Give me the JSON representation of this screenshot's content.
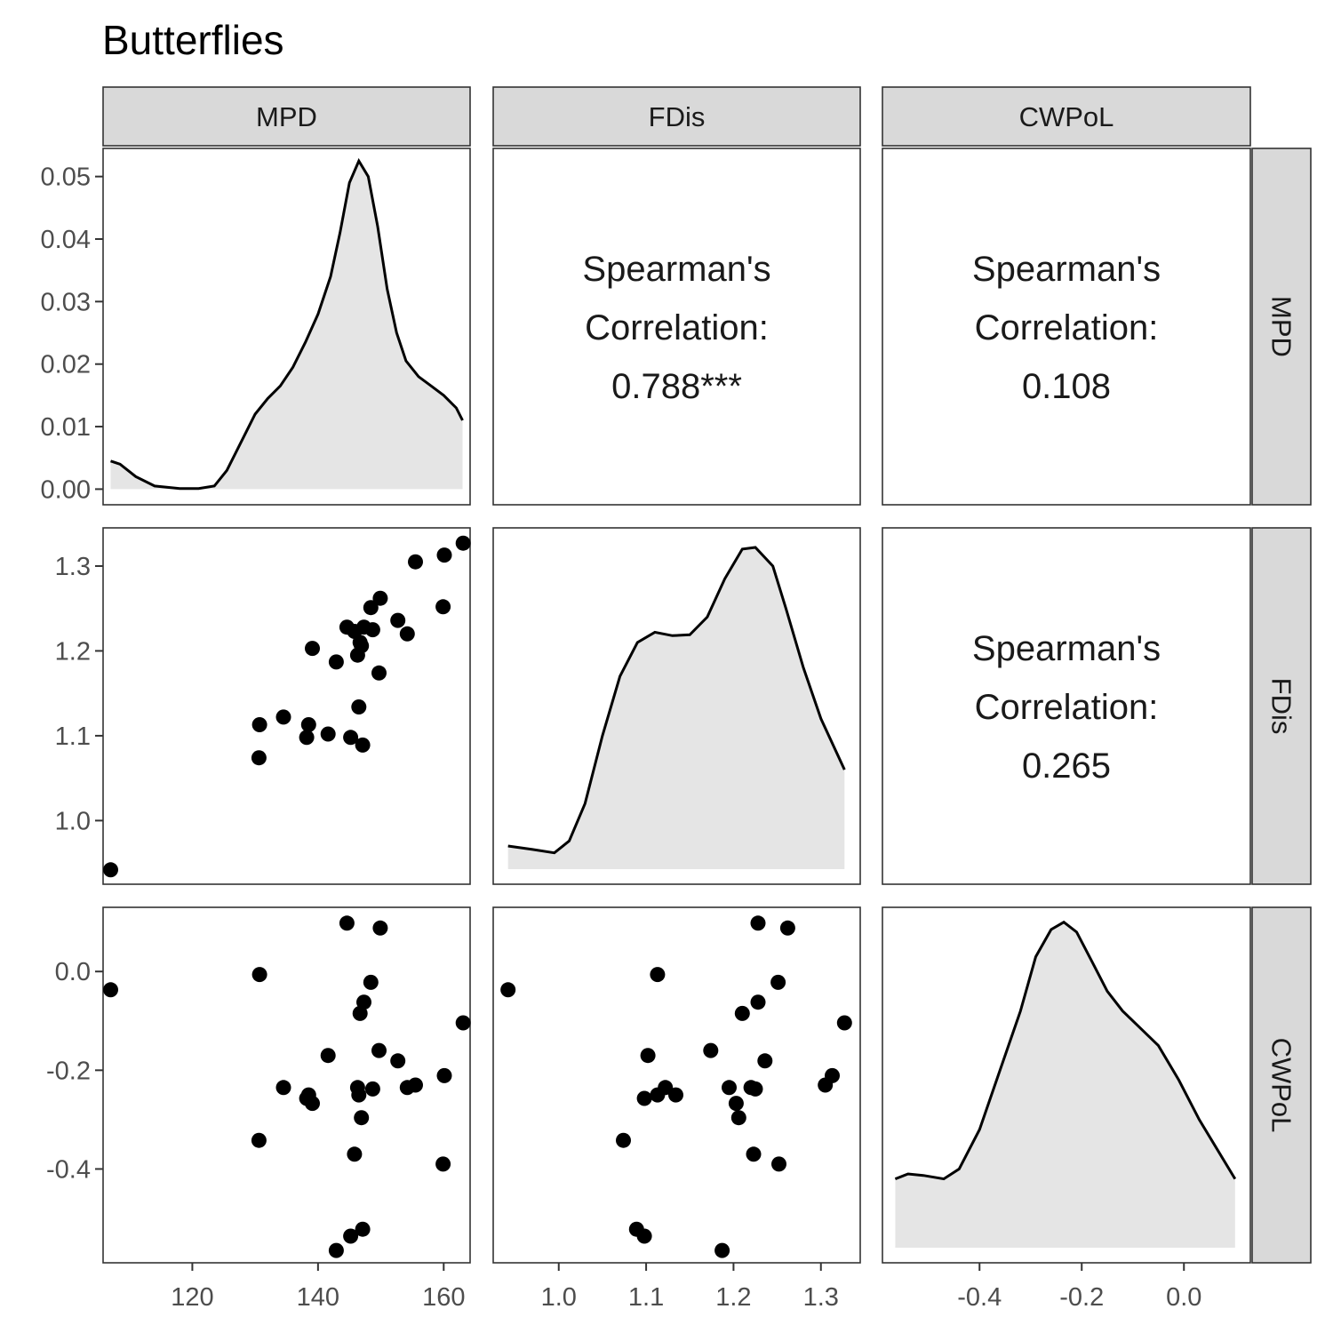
{
  "chart_data": {
    "type": "scatter",
    "subtype": "pairs-matrix",
    "title": "Butterflies",
    "variables": [
      "MPD",
      "FDis",
      "CWPoL"
    ],
    "axes": {
      "MPD": {
        "range": [
          105.8,
          164.2
        ],
        "ticks": [
          120,
          140,
          160
        ],
        "tick_labels": [
          "120",
          "140",
          "160"
        ]
      },
      "FDis": {
        "range": [
          0.925,
          1.345
        ],
        "ticks": [
          1.0,
          1.1,
          1.2,
          1.3
        ],
        "tick_labels": [
          "1.0",
          "1.1",
          "1.2",
          "1.3"
        ]
      },
      "CWPoL": {
        "range": [
          -0.59,
          0.13
        ],
        "ticks": [
          -0.4,
          -0.2,
          0.0
        ],
        "tick_labels": [
          "-0.4",
          "-0.2",
          "0.0"
        ]
      }
    },
    "density_axis": {
      "range": [
        -0.0025,
        0.0545
      ],
      "ticks": [
        0.0,
        0.01,
        0.02,
        0.03,
        0.04,
        0.05
      ],
      "tick_labels": [
        "0.00",
        "0.01",
        "0.02",
        "0.03",
        "0.04",
        "0.05"
      ]
    },
    "density_curves": {
      "MPD": [
        [
          107.0,
          0.0045
        ],
        [
          108.5,
          0.004
        ],
        [
          111.0,
          0.002
        ],
        [
          114.0,
          0.0005
        ],
        [
          118.0,
          0.0001
        ],
        [
          121.0,
          0.0001
        ],
        [
          123.5,
          0.0005
        ],
        [
          125.5,
          0.003
        ],
        [
          128.0,
          0.008
        ],
        [
          130.0,
          0.012
        ],
        [
          132.0,
          0.0145
        ],
        [
          134.0,
          0.0165
        ],
        [
          136.0,
          0.0195
        ],
        [
          138.0,
          0.0235
        ],
        [
          140.0,
          0.028
        ],
        [
          142.0,
          0.034
        ],
        [
          143.5,
          0.041
        ],
        [
          145.0,
          0.049
        ],
        [
          146.5,
          0.0525
        ],
        [
          148.0,
          0.05
        ],
        [
          149.5,
          0.042
        ],
        [
          151.0,
          0.032
        ],
        [
          152.5,
          0.025
        ],
        [
          154.0,
          0.0205
        ],
        [
          156.0,
          0.018
        ],
        [
          158.0,
          0.0165
        ],
        [
          160.0,
          0.015
        ],
        [
          162.0,
          0.013
        ],
        [
          163.0,
          0.011
        ]
      ],
      "FDis": [
        [
          0.942,
          0.97
        ],
        [
          0.97,
          0.966
        ],
        [
          0.995,
          0.962
        ],
        [
          1.012,
          0.976
        ],
        [
          1.03,
          1.02
        ],
        [
          1.05,
          1.1
        ],
        [
          1.07,
          1.17
        ],
        [
          1.09,
          1.21
        ],
        [
          1.11,
          1.222
        ],
        [
          1.13,
          1.218
        ],
        [
          1.15,
          1.219
        ],
        [
          1.17,
          1.24
        ],
        [
          1.19,
          1.285
        ],
        [
          1.21,
          1.32
        ],
        [
          1.225,
          1.322
        ],
        [
          1.245,
          1.3
        ],
        [
          1.26,
          1.25
        ],
        [
          1.28,
          1.18
        ],
        [
          1.3,
          1.12
        ],
        [
          1.327,
          1.06
        ]
      ],
      "CWPoL": [
        [
          -0.565,
          -0.42
        ],
        [
          -0.54,
          -0.41
        ],
        [
          -0.51,
          -0.413
        ],
        [
          -0.47,
          -0.42
        ],
        [
          -0.44,
          -0.4
        ],
        [
          -0.4,
          -0.32
        ],
        [
          -0.36,
          -0.2
        ],
        [
          -0.32,
          -0.08
        ],
        [
          -0.29,
          0.03
        ],
        [
          -0.26,
          0.085
        ],
        [
          -0.235,
          0.1
        ],
        [
          -0.21,
          0.08
        ],
        [
          -0.18,
          0.02
        ],
        [
          -0.15,
          -0.04
        ],
        [
          -0.12,
          -0.08
        ],
        [
          -0.09,
          -0.11
        ],
        [
          -0.05,
          -0.15
        ],
        [
          -0.01,
          -0.22
        ],
        [
          0.03,
          -0.3
        ],
        [
          0.065,
          -0.36
        ],
        [
          0.1,
          -0.42
        ]
      ]
    },
    "points": {
      "MPD": [
        107.0,
        130.6,
        130.7,
        134.5,
        138.2,
        138.5,
        139.1,
        141.6,
        142.9,
        144.6,
        145.2,
        145.8,
        146.3,
        146.5,
        146.7,
        146.9,
        147.1,
        147.3,
        148.4,
        148.7,
        149.7,
        149.9,
        152.7,
        154.2,
        155.5,
        159.9,
        160.1,
        163.1
      ],
      "FDis": [
        0.942,
        1.074,
        1.113,
        1.122,
        1.098,
        1.113,
        1.203,
        1.102,
        1.187,
        1.228,
        1.098,
        1.223,
        1.195,
        1.134,
        1.21,
        1.206,
        1.089,
        1.228,
        1.251,
        1.225,
        1.174,
        1.262,
        1.236,
        1.22,
        1.305,
        1.252,
        1.313,
        1.327
      ],
      "CWPoL": [
        -0.037,
        -0.342,
        -0.006,
        -0.235,
        -0.257,
        -0.25,
        -0.267,
        -0.17,
        -0.565,
        0.098,
        -0.536,
        -0.37,
        -0.235,
        -0.25,
        -0.085,
        -0.296,
        -0.522,
        -0.062,
        -0.022,
        -0.238,
        -0.16,
        0.088,
        -0.181,
        -0.235,
        -0.23,
        -0.39,
        -0.211,
        -0.104
      ]
    },
    "correlations": {
      "MPD_FDis": {
        "lines": [
          "Spearman's",
          "Correlation:",
          "0.788***"
        ]
      },
      "MPD_CWPoL": {
        "lines": [
          "Spearman's",
          "Correlation:",
          "0.108"
        ]
      },
      "FDis_CWPoL": {
        "lines": [
          "Spearman's",
          "Correlation:",
          "0.265"
        ]
      }
    },
    "grid": false,
    "legend": "none"
  }
}
